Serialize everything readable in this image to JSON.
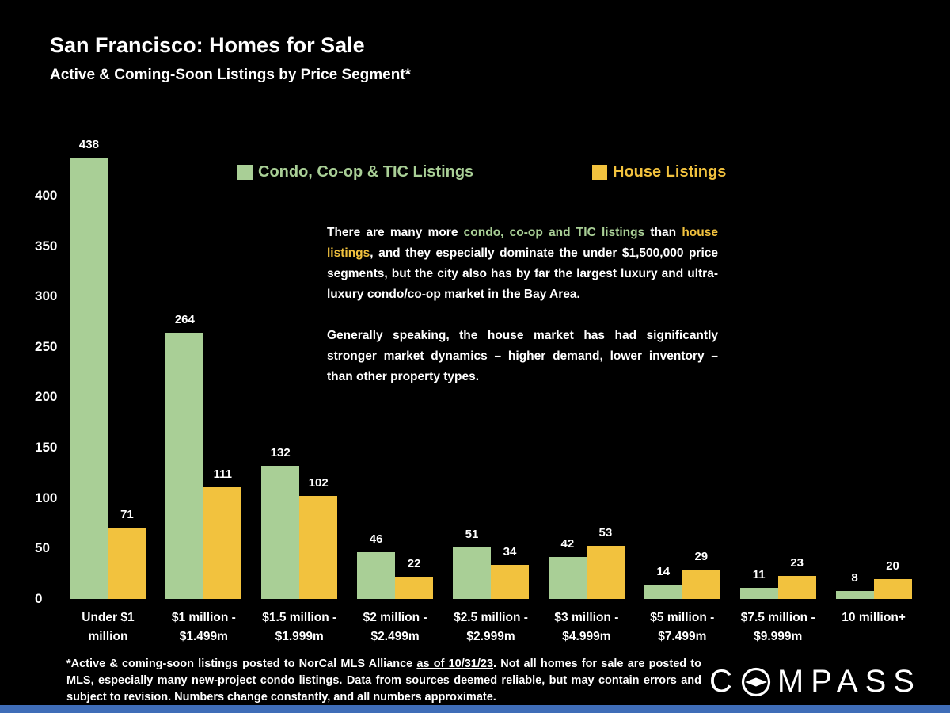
{
  "slide": {
    "title": "San Francisco: Homes for Sale",
    "subtitle": "Active & Coming-Soon Listings by Price Segment*"
  },
  "chart_data": {
    "type": "bar",
    "title": "San Francisco: Homes for Sale - Active & Coming-Soon Listings by Price Segment",
    "categories": [
      [
        "Under $1",
        "million"
      ],
      [
        "$1 million -",
        "$1.499m"
      ],
      [
        "$1.5 million -",
        "$1.999m"
      ],
      [
        "$2 million -",
        "$2.499m"
      ],
      [
        "$2.5 million -",
        "$2.999m"
      ],
      [
        "$3 million -",
        "$4.999m"
      ],
      [
        "$5 million -",
        "$7.499m"
      ],
      [
        "$7.5 million -",
        "$9.999m"
      ],
      [
        "10 million+"
      ]
    ],
    "series": [
      {
        "name": "Condo, Co-op & TIC Listings",
        "color": "#a9cf96",
        "values": [
          438,
          264,
          132,
          46,
          51,
          42,
          14,
          11,
          8
        ]
      },
      {
        "name": "House Listings",
        "color": "#f2c23e",
        "values": [
          71,
          111,
          102,
          22,
          34,
          53,
          29,
          23,
          20
        ]
      }
    ],
    "yticks": [
      0,
      50,
      100,
      150,
      200,
      250,
      300,
      350,
      400
    ],
    "ylim": [
      0,
      440
    ],
    "grid": false,
    "legend_position": "top"
  },
  "annotation": {
    "p1_t1": "There are many more ",
    "p1_green": "condo, co-op and TIC listings",
    "p1_t2": " than ",
    "p1_yellow": "house listings",
    "p1_t3": ", and they especially dominate the under $1,500,000 price segments, but the city also has by far the largest luxury and ultra-luxury condo/co-op market in the Bay Area.",
    "p2": "Generally speaking, the house market has had significantly stronger market dynamics – higher demand, lower inventory – than other property types."
  },
  "footnote": {
    "t1": "*Active & coming-soon listings posted to NorCal MLS Alliance ",
    "underlined": "as of 10/31/23",
    "t2": ". Not all homes for sale are posted to MLS, especially many new-project condo listings. Data from sources deemed reliable, but may contain errors and subject to revision. Numbers change constantly, and all numbers approximate."
  },
  "brand": {
    "part1": "C",
    "part2": "MPASS"
  },
  "colors": {
    "background": "#000000",
    "text": "#ffffff",
    "condo_green": "#a9cf96",
    "house_yellow": "#f2c23e",
    "bottom_bar_blue": "#3f6db8"
  }
}
